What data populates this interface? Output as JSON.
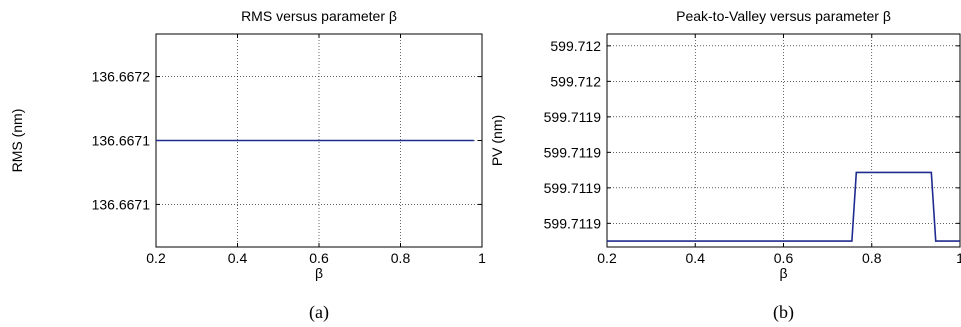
{
  "figure": {
    "panel_labels": [
      "(a)",
      "(b)"
    ]
  },
  "chart_data": [
    {
      "type": "line",
      "title": "RMS versus parameter β",
      "xlabel": "β",
      "ylabel": "RMS (nm)",
      "xlim": [
        0.2,
        1.0
      ],
      "ylim": [
        136.66705,
        136.66725
      ],
      "x_ticks": [
        0.2,
        0.4,
        0.6,
        0.8,
        1.0
      ],
      "x_tick_labels": [
        "0.2",
        "0.4",
        "0.6",
        "0.8",
        "1"
      ],
      "y_ticks": [
        136.66709,
        136.66715,
        136.66721
      ],
      "y_tick_labels": [
        "136.6671",
        "136.6671",
        "136.6672"
      ],
      "grid": true,
      "series": [
        {
          "color": "#1f2b8f",
          "x": [
            0.2,
            0.98
          ],
          "y": [
            136.66715,
            136.66715
          ]
        }
      ]
    },
    {
      "type": "line",
      "title": "Peak-to-Valley versus parameter β",
      "xlabel": "β",
      "ylabel": "PV (nm)",
      "xlim": [
        0.2,
        1.0
      ],
      "ylim": [
        599.71185,
        599.71203
      ],
      "x_ticks": [
        0.2,
        0.4,
        0.6,
        0.8,
        1.0
      ],
      "x_tick_labels": [
        "0.2",
        "0.4",
        "0.6",
        "0.8",
        "1"
      ],
      "y_ticks": [
        599.71187,
        599.7119,
        599.71193,
        599.71196,
        599.71199,
        599.71202
      ],
      "y_tick_labels": [
        "599.7119",
        "599.7119",
        "599.7119",
        "599.7119",
        "599.712",
        "599.712"
      ],
      "grid": true,
      "series": [
        {
          "color": "#1f2b8f",
          "x": [
            0.2,
            0.755,
            0.765,
            0.935,
            0.945,
            1.0
          ],
          "y": [
            599.711855,
            599.711855,
            599.711913,
            599.711913,
            599.711855,
            599.711855
          ]
        }
      ]
    }
  ]
}
